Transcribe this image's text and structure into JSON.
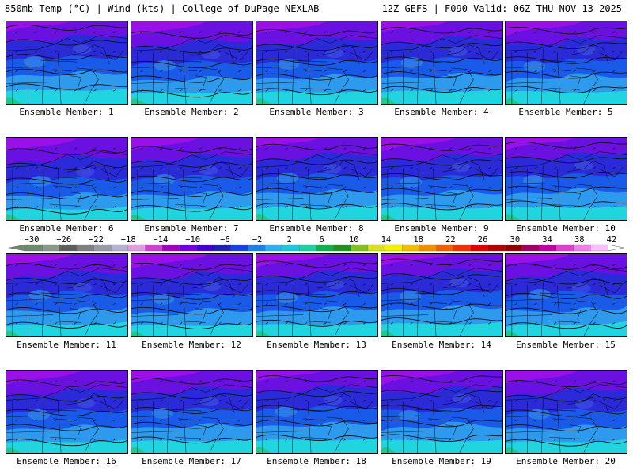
{
  "header": {
    "left": "850mb Temp (°C) | Wind (kts) | College of DuPage NEXLAB",
    "right": "12Z GEFS | F090 Valid: 06Z THU NOV 13 2025"
  },
  "members": [
    {
      "label": "Ensemble Member: 1"
    },
    {
      "label": "Ensemble Member: 2"
    },
    {
      "label": "Ensemble Member: 3"
    },
    {
      "label": "Ensemble Member: 4"
    },
    {
      "label": "Ensemble Member: 5"
    },
    {
      "label": "Ensemble Member: 6"
    },
    {
      "label": "Ensemble Member: 7"
    },
    {
      "label": "Ensemble Member: 8"
    },
    {
      "label": "Ensemble Member: 9"
    },
    {
      "label": "Ensemble Member: 10"
    },
    {
      "label": "Ensemble Member: 11"
    },
    {
      "label": "Ensemble Member: 12"
    },
    {
      "label": "Ensemble Member: 13"
    },
    {
      "label": "Ensemble Member: 14"
    },
    {
      "label": "Ensemble Member: 15"
    },
    {
      "label": "Ensemble Member: 16"
    },
    {
      "label": "Ensemble Member: 17"
    },
    {
      "label": "Ensemble Member: 18"
    },
    {
      "label": "Ensemble Member: 19"
    },
    {
      "label": "Ensemble Member: 20"
    }
  ],
  "colorbar": {
    "labels": [
      "-30",
      "-26",
      "-22",
      "-18",
      "-14",
      "-10",
      "-6",
      "-2",
      "2",
      "6",
      "10",
      "14",
      "18",
      "22",
      "26",
      "30",
      "34",
      "38",
      "42"
    ],
    "colors": [
      "#6e8a6e",
      "#8a9a8a",
      "#5f5f5f",
      "#7f7f7f",
      "#9a9aa8",
      "#b4b4d0",
      "#e0a0e0",
      "#d040d0",
      "#a000c0",
      "#7000e0",
      "#4000d0",
      "#2020b0",
      "#1840e0",
      "#1e7fe8",
      "#30b0ef",
      "#1fc8d8",
      "#20d0a0",
      "#10b050",
      "#209020",
      "#80c020",
      "#d8e020",
      "#f0f000",
      "#f0c000",
      "#f09000",
      "#f06000",
      "#f03000",
      "#e00000",
      "#b00000",
      "#900000",
      "#a00060",
      "#c000a0",
      "#e040d0",
      "#f080e8",
      "#f8c0f8"
    ]
  }
}
